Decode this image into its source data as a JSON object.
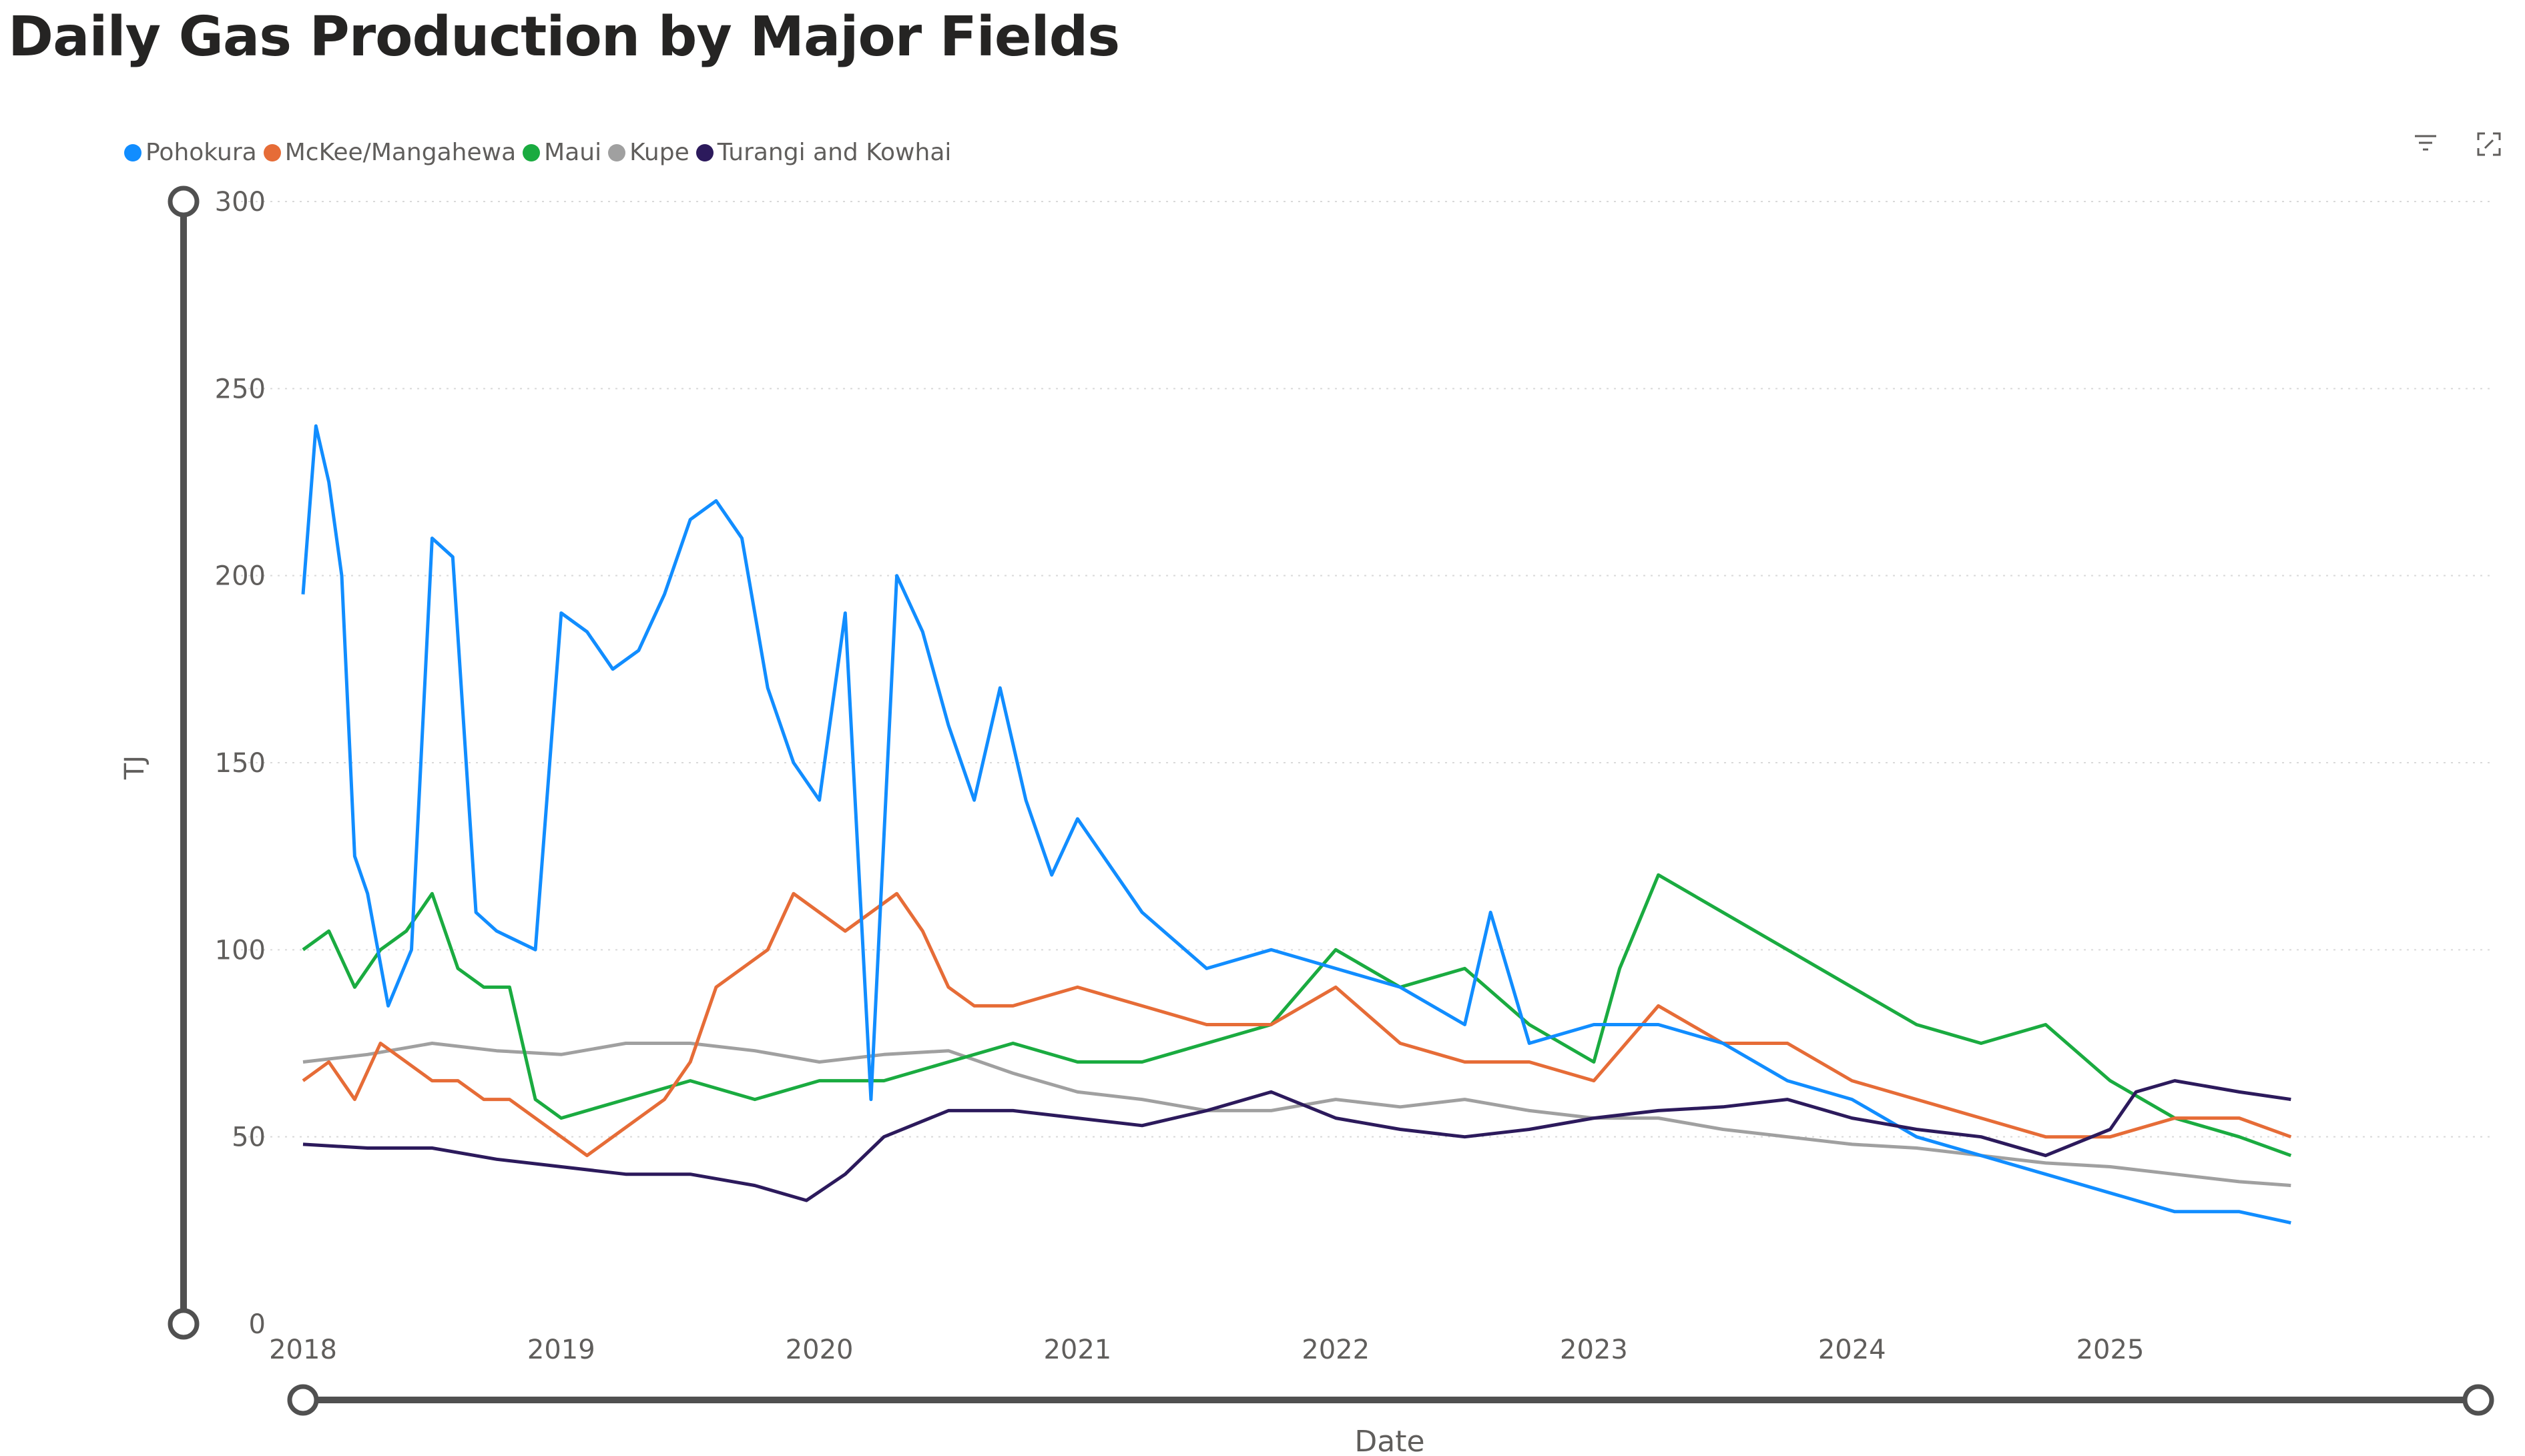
{
  "title": "Daily Gas Production by Major Fields",
  "toolbar": {
    "filter_icon": "filter-icon",
    "focus_icon": "focus-mode-icon"
  },
  "chart_data": {
    "type": "line",
    "xlabel": "Date",
    "ylabel": "TJ",
    "x_ticks": [
      "2018",
      "2019",
      "2020",
      "2021",
      "2022",
      "2023",
      "2024",
      "2025"
    ],
    "y_ticks": [
      "0",
      "50",
      "100",
      "150",
      "200",
      "250",
      "300"
    ],
    "xlim": [
      2018.0,
      2025.72
    ],
    "ylim": [
      0,
      300
    ],
    "grid": "horizontal dotted",
    "legend_position": "top-left",
    "series": [
      {
        "name": "Pohokura",
        "color": "#118DFF",
        "x": [
          2018.0,
          2018.05,
          2018.1,
          2018.15,
          2018.2,
          2018.25,
          2018.33,
          2018.42,
          2018.5,
          2018.58,
          2018.67,
          2018.75,
          2018.9,
          2019.0,
          2019.1,
          2019.2,
          2019.3,
          2019.4,
          2019.5,
          2019.6,
          2019.7,
          2019.8,
          2019.9,
          2020.0,
          2020.1,
          2020.2,
          2020.3,
          2020.4,
          2020.5,
          2020.6,
          2020.7,
          2020.8,
          2020.9,
          2021.0,
          2021.25,
          2021.5,
          2021.75,
          2022.0,
          2022.25,
          2022.5,
          2022.6,
          2022.75,
          2023.0,
          2023.25,
          2023.5,
          2023.75,
          2024.0,
          2024.25,
          2024.5,
          2024.75,
          2025.0,
          2025.25,
          2025.5,
          2025.7
        ],
        "values": [
          195,
          240,
          225,
          200,
          125,
          115,
          85,
          100,
          210,
          205,
          110,
          105,
          100,
          190,
          185,
          175,
          180,
          195,
          215,
          220,
          210,
          170,
          150,
          140,
          190,
          60,
          200,
          185,
          160,
          140,
          170,
          140,
          120,
          135,
          110,
          95,
          100,
          95,
          90,
          80,
          110,
          75,
          80,
          80,
          75,
          65,
          60,
          50,
          45,
          40,
          35,
          30,
          30,
          27
        ]
      },
      {
        "name": "McKee/Mangahewa",
        "color": "#E66C37",
        "x": [
          2018.0,
          2018.1,
          2018.2,
          2018.3,
          2018.4,
          2018.5,
          2018.6,
          2018.7,
          2018.8,
          2018.9,
          2019.0,
          2019.1,
          2019.2,
          2019.3,
          2019.4,
          2019.5,
          2019.6,
          2019.7,
          2019.8,
          2019.9,
          2020.0,
          2020.1,
          2020.2,
          2020.3,
          2020.4,
          2020.5,
          2020.6,
          2020.75,
          2021.0,
          2021.25,
          2021.5,
          2021.75,
          2022.0,
          2022.25,
          2022.5,
          2022.75,
          2023.0,
          2023.25,
          2023.5,
          2023.75,
          2024.0,
          2024.25,
          2024.5,
          2024.75,
          2025.0,
          2025.25,
          2025.5,
          2025.7
        ],
        "values": [
          65,
          70,
          60,
          75,
          70,
          65,
          65,
          60,
          60,
          55,
          50,
          45,
          50,
          55,
          60,
          70,
          90,
          95,
          100,
          115,
          110,
          105,
          110,
          115,
          105,
          90,
          85,
          85,
          90,
          85,
          80,
          80,
          90,
          75,
          70,
          70,
          65,
          85,
          75,
          75,
          65,
          60,
          55,
          50,
          50,
          55,
          55,
          50
        ]
      },
      {
        "name": "Maui",
        "color": "#1AAB40",
        "x": [
          2018.0,
          2018.1,
          2018.2,
          2018.3,
          2018.4,
          2018.5,
          2018.6,
          2018.7,
          2018.8,
          2018.9,
          2019.0,
          2019.25,
          2019.5,
          2019.75,
          2020.0,
          2020.25,
          2020.5,
          2020.75,
          2021.0,
          2021.25,
          2021.5,
          2021.75,
          2022.0,
          2022.25,
          2022.5,
          2022.75,
          2023.0,
          2023.1,
          2023.25,
          2023.5,
          2023.75,
          2024.0,
          2024.25,
          2024.5,
          2024.75,
          2025.0,
          2025.25,
          2025.5,
          2025.7
        ],
        "values": [
          100,
          105,
          90,
          100,
          105,
          115,
          95,
          90,
          90,
          60,
          55,
          60,
          65,
          60,
          65,
          65,
          70,
          75,
          70,
          70,
          75,
          80,
          100,
          90,
          95,
          80,
          70,
          95,
          120,
          110,
          100,
          90,
          80,
          75,
          80,
          65,
          55,
          50,
          45
        ]
      },
      {
        "name": "Kupe",
        "color": "#A0A0A0",
        "x": [
          2018.0,
          2018.25,
          2018.5,
          2018.75,
          2019.0,
          2019.25,
          2019.5,
          2019.75,
          2020.0,
          2020.25,
          2020.5,
          2020.75,
          2021.0,
          2021.25,
          2021.5,
          2021.75,
          2022.0,
          2022.25,
          2022.5,
          2022.75,
          2023.0,
          2023.25,
          2023.5,
          2023.75,
          2024.0,
          2024.25,
          2024.5,
          2024.75,
          2025.0,
          2025.25,
          2025.5,
          2025.7
        ],
        "values": [
          70,
          72,
          75,
          73,
          72,
          75,
          75,
          73,
          70,
          72,
          73,
          67,
          62,
          60,
          57,
          57,
          60,
          58,
          60,
          57,
          55,
          55,
          52,
          50,
          48,
          47,
          45,
          43,
          42,
          40,
          38,
          37
        ]
      },
      {
        "name": "Turangi and Kowhai",
        "color": "#2C1A5C",
        "x": [
          2018.0,
          2018.25,
          2018.5,
          2018.75,
          2019.0,
          2019.25,
          2019.5,
          2019.75,
          2019.95,
          2020.1,
          2020.25,
          2020.5,
          2020.75,
          2021.0,
          2021.25,
          2021.5,
          2021.75,
          2022.0,
          2022.25,
          2022.5,
          2022.75,
          2023.0,
          2023.25,
          2023.5,
          2023.75,
          2024.0,
          2024.25,
          2024.5,
          2024.75,
          2025.0,
          2025.1,
          2025.25,
          2025.5,
          2025.7
        ],
        "values": [
          48,
          47,
          47,
          44,
          42,
          40,
          40,
          37,
          33,
          40,
          50,
          57,
          57,
          55,
          53,
          57,
          62,
          55,
          52,
          50,
          52,
          55,
          57,
          58,
          60,
          55,
          52,
          50,
          45,
          52,
          62,
          65,
          62,
          60
        ]
      }
    ]
  }
}
